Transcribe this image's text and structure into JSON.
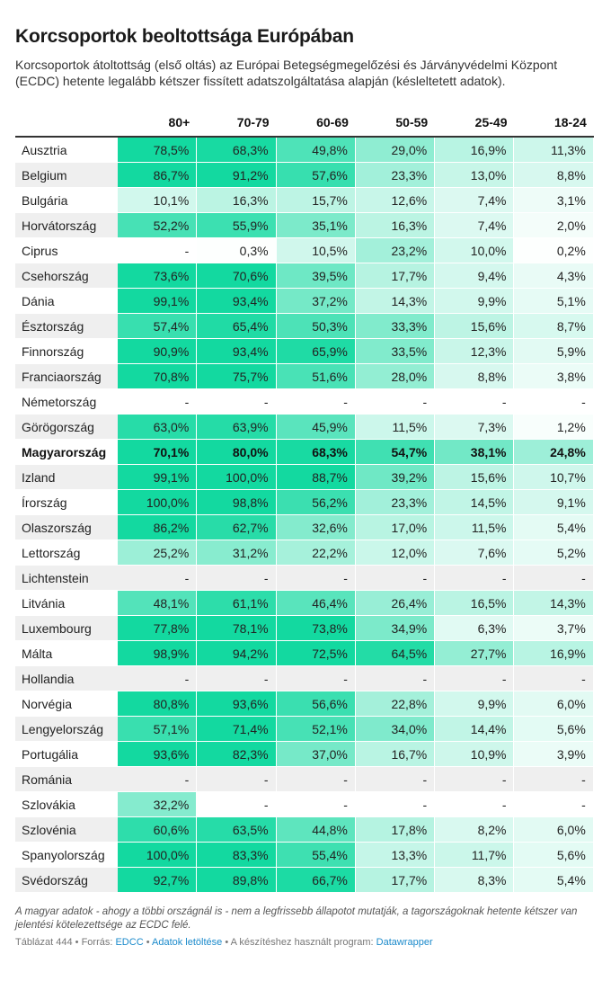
{
  "title": "Korcsoportok beoltottsága Európában",
  "subtitle": "Korcsoportok átoltottság (első oltás) az Európai Betegségmegelőzési és Járványvédelmi Központ (ECDC) hetente legalább kétszer fissített adatszolgáltatása alapján (késleltetett adatok).",
  "notes": "A magyar adatok - ahogy a többi országnál is - nem a legfrissebb állapotot mutatják, a tagországoknak hetente kétszer van jelentési kötelezettsége az ECDC felé.",
  "source": {
    "prefix": "Táblázat 444 • Forrás: ",
    "ecdc": "EDCC",
    "sep1": " • ",
    "download": "Adatok letöltése",
    "sep2": " • A készítéshez használt program: ",
    "program": "Datawrapper"
  },
  "colors": {
    "strong": "#13d9a0",
    "white": "#ffffff",
    "alt_row": "#efefef"
  },
  "chart_data": {
    "type": "table",
    "columns": [
      "",
      "80+",
      "70-79",
      "60-69",
      "50-59",
      "25-49",
      "18-24"
    ],
    "highlight_row": "Magyarország",
    "rows": [
      {
        "country": "Ausztria",
        "values": [
          78.5,
          68.3,
          49.8,
          29.0,
          16.9,
          11.3
        ]
      },
      {
        "country": "Belgium",
        "values": [
          86.7,
          91.2,
          57.6,
          23.3,
          13.0,
          8.8
        ]
      },
      {
        "country": "Bulgária",
        "values": [
          10.1,
          16.3,
          15.7,
          12.6,
          7.4,
          3.1
        ]
      },
      {
        "country": "Horvátország",
        "values": [
          52.2,
          55.9,
          35.1,
          16.3,
          7.4,
          2.0
        ]
      },
      {
        "country": "Ciprus",
        "values": [
          null,
          0.3,
          10.5,
          23.2,
          10.0,
          0.2
        ]
      },
      {
        "country": "Csehország",
        "values": [
          73.6,
          70.6,
          39.5,
          17.7,
          9.4,
          4.3
        ]
      },
      {
        "country": "Dánia",
        "values": [
          99.1,
          93.4,
          37.2,
          14.3,
          9.9,
          5.1
        ]
      },
      {
        "country": "Észtország",
        "values": [
          57.4,
          65.4,
          50.3,
          33.3,
          15.6,
          8.7
        ]
      },
      {
        "country": "Finnország",
        "values": [
          90.9,
          93.4,
          65.9,
          33.5,
          12.3,
          5.9
        ]
      },
      {
        "country": "Franciaország",
        "values": [
          70.8,
          75.7,
          51.6,
          28.0,
          8.8,
          3.8
        ]
      },
      {
        "country": "Németország",
        "values": [
          null,
          null,
          null,
          null,
          null,
          null
        ]
      },
      {
        "country": "Görögország",
        "values": [
          63.0,
          63.9,
          45.9,
          11.5,
          7.3,
          1.2
        ]
      },
      {
        "country": "Magyarország",
        "values": [
          70.1,
          80.0,
          68.3,
          54.7,
          38.1,
          24.8
        ]
      },
      {
        "country": "Izland",
        "values": [
          99.1,
          100.0,
          88.7,
          39.2,
          15.6,
          10.7
        ]
      },
      {
        "country": "Írország",
        "values": [
          100.0,
          98.8,
          56.2,
          23.3,
          14.5,
          9.1
        ]
      },
      {
        "country": "Olaszország",
        "values": [
          86.2,
          62.7,
          32.6,
          17.0,
          11.5,
          5.4
        ]
      },
      {
        "country": "Lettország",
        "values": [
          25.2,
          31.2,
          22.2,
          12.0,
          7.6,
          5.2
        ]
      },
      {
        "country": "Lichtenstein",
        "values": [
          null,
          null,
          null,
          null,
          null,
          null
        ]
      },
      {
        "country": "Litvánia",
        "values": [
          48.1,
          61.1,
          46.4,
          26.4,
          16.5,
          14.3
        ]
      },
      {
        "country": "Luxembourg",
        "values": [
          77.8,
          78.1,
          73.8,
          34.9,
          6.3,
          3.7
        ]
      },
      {
        "country": "Málta",
        "values": [
          98.9,
          94.2,
          72.5,
          64.5,
          27.7,
          16.9
        ]
      },
      {
        "country": "Hollandia",
        "values": [
          null,
          null,
          null,
          null,
          null,
          null
        ]
      },
      {
        "country": "Norvégia",
        "values": [
          80.8,
          93.6,
          56.6,
          22.8,
          9.9,
          6.0
        ]
      },
      {
        "country": "Lengyelország",
        "values": [
          57.1,
          71.4,
          52.1,
          34.0,
          14.4,
          5.6
        ]
      },
      {
        "country": "Portugália",
        "values": [
          93.6,
          82.3,
          37.0,
          16.7,
          10.9,
          3.9
        ]
      },
      {
        "country": "Románia",
        "values": [
          null,
          null,
          null,
          null,
          null,
          null
        ]
      },
      {
        "country": "Szlovákia",
        "values": [
          32.2,
          null,
          null,
          null,
          null,
          null
        ]
      },
      {
        "country": "Szlovénia",
        "values": [
          60.6,
          63.5,
          44.8,
          17.8,
          8.2,
          6.0
        ]
      },
      {
        "country": "Spanyolország",
        "values": [
          100.0,
          83.3,
          55.4,
          13.3,
          11.7,
          5.6
        ]
      },
      {
        "country": "Svédország",
        "values": [
          92.7,
          89.8,
          66.7,
          17.7,
          8.3,
          5.4
        ]
      }
    ]
  }
}
